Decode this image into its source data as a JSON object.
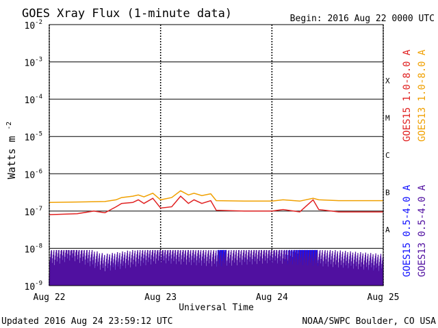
{
  "chart_data": {
    "type": "line",
    "title": "GOES Xray Flux (1-minute data)",
    "begin_label": "Begin:  2016 Aug 22 0000 UTC",
    "xlabel": "Universal Time",
    "ylabel": "Watts m",
    "ylabel_sup": "-2",
    "yscale": "log",
    "ylim": [
      1e-09,
      0.01
    ],
    "xlim": [
      0,
      3
    ],
    "x_unit": "days since 2016 Aug 22 0000 UTC",
    "x_ticks": [
      {
        "value": 0,
        "label": "Aug 22"
      },
      {
        "value": 1,
        "label": "Aug 23"
      },
      {
        "value": 2,
        "label": "Aug 24"
      },
      {
        "value": 3,
        "label": "Aug 25"
      }
    ],
    "y_ticks": [
      {
        "exp": -9,
        "base": "10",
        "sup": "-9"
      },
      {
        "exp": -8,
        "base": "10",
        "sup": "-8"
      },
      {
        "exp": -7,
        "base": "10",
        "sup": "-7"
      },
      {
        "exp": -6,
        "base": "10",
        "sup": "-6"
      },
      {
        "exp": -5,
        "base": "10",
        "sup": "-5"
      },
      {
        "exp": -4,
        "base": "10",
        "sup": "-4"
      },
      {
        "exp": -3,
        "base": "10",
        "sup": "-3"
      },
      {
        "exp": -2,
        "base": "10",
        "sup": "-2"
      }
    ],
    "flare_classes": [
      {
        "label": "A",
        "exp": -7.5
      },
      {
        "label": "B",
        "exp": -6.5
      },
      {
        "label": "C",
        "exp": -5.5
      },
      {
        "label": "M",
        "exp": -4.5
      },
      {
        "label": "X",
        "exp": -3.5
      }
    ],
    "series": [
      {
        "name": "GOES13 1.0-8.0 A",
        "color": "#f0a000",
        "points": [
          [
            0,
            1.7e-07
          ],
          [
            0.25,
            1.75e-07
          ],
          [
            0.5,
            1.8e-07
          ],
          [
            0.6,
            2e-07
          ],
          [
            0.65,
            2.3e-07
          ],
          [
            0.75,
            2.5e-07
          ],
          [
            0.8,
            2.7e-07
          ],
          [
            0.85,
            2.4e-07
          ],
          [
            0.93,
            3e-07
          ],
          [
            1.0,
            2e-07
          ],
          [
            1.1,
            2.3e-07
          ],
          [
            1.18,
            3.5e-07
          ],
          [
            1.25,
            2.7e-07
          ],
          [
            1.3,
            3e-07
          ],
          [
            1.37,
            2.6e-07
          ],
          [
            1.45,
            2.9e-07
          ],
          [
            1.5,
            1.9e-07
          ],
          [
            1.75,
            1.85e-07
          ],
          [
            2.0,
            1.85e-07
          ],
          [
            2.1,
            2e-07
          ],
          [
            2.25,
            1.85e-07
          ],
          [
            2.37,
            2.2e-07
          ],
          [
            2.42,
            2e-07
          ],
          [
            2.6,
            1.9e-07
          ],
          [
            3.0,
            1.9e-07
          ]
        ]
      },
      {
        "name": "GOES15 1.0-8.0 A",
        "color": "#e02020",
        "points": [
          [
            0,
            8e-08
          ],
          [
            0.25,
            8.5e-08
          ],
          [
            0.4,
            1e-07
          ],
          [
            0.5,
            9e-08
          ],
          [
            0.6,
            1.3e-07
          ],
          [
            0.65,
            1.6e-07
          ],
          [
            0.75,
            1.7e-07
          ],
          [
            0.8,
            2e-07
          ],
          [
            0.85,
            1.6e-07
          ],
          [
            0.93,
            2.2e-07
          ],
          [
            1.0,
            1.2e-07
          ],
          [
            1.1,
            1.3e-07
          ],
          [
            1.18,
            2.5e-07
          ],
          [
            1.25,
            1.6e-07
          ],
          [
            1.3,
            2e-07
          ],
          [
            1.37,
            1.6e-07
          ],
          [
            1.45,
            1.9e-07
          ],
          [
            1.5,
            1.05e-07
          ],
          [
            1.75,
            1e-07
          ],
          [
            2.0,
            1e-07
          ],
          [
            2.1,
            1.1e-07
          ],
          [
            2.25,
            9.5e-08
          ],
          [
            2.37,
            2e-07
          ],
          [
            2.42,
            1.1e-07
          ],
          [
            2.6,
            9.5e-08
          ],
          [
            3.0,
            9.5e-08
          ]
        ]
      },
      {
        "name": "GOES15 0.5-4.0 A",
        "color": "#1010ff",
        "points": [
          [
            0,
            1.5e-09
          ],
          [
            0.5,
            1.5e-09
          ],
          [
            1.0,
            1.5e-09
          ],
          [
            1.5,
            1.5e-09
          ],
          [
            1.55,
            9e-09
          ],
          [
            1.62,
            1e-09
          ],
          [
            1.7,
            1.2e-09
          ],
          [
            2.0,
            1.5e-09
          ],
          [
            2.38,
            9e-09
          ],
          [
            2.44,
            1e-09
          ],
          [
            2.5,
            1.5e-09
          ],
          [
            3.0,
            1.2e-09
          ]
        ]
      },
      {
        "name": "GOES13 0.5-4.0 A",
        "color": "#5010a0",
        "points": [
          [
            0,
            2e-09
          ],
          [
            0.2,
            3e-09
          ],
          [
            0.5,
            1.5e-09
          ],
          [
            1.0,
            2.5e-09
          ],
          [
            1.5,
            2e-09
          ],
          [
            2.0,
            2.5e-09
          ],
          [
            2.5,
            2e-09
          ],
          [
            3.0,
            1.5e-09
          ]
        ]
      }
    ],
    "footer_left": "Updated 2016 Aug 24 23:59:12 UTC",
    "footer_right": "NOAA/SWPC Boulder, CO USA",
    "grid": true
  }
}
